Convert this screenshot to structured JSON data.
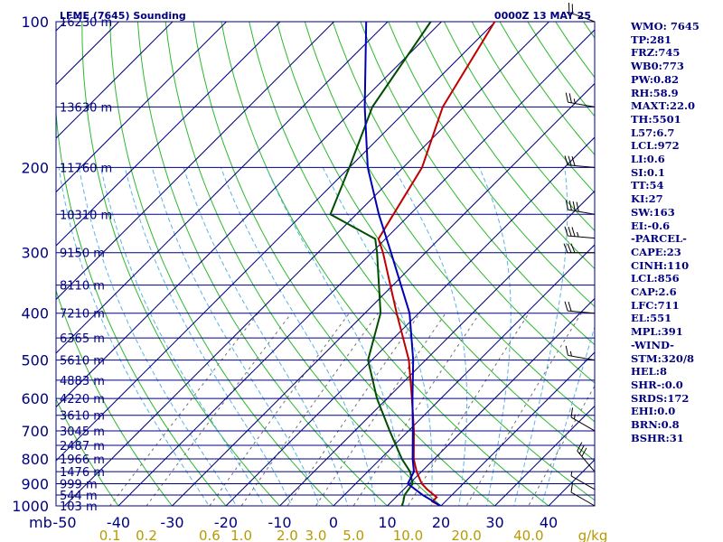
{
  "header": {
    "left": "LFME (7645) Sounding",
    "right": "0000Z 13 MAY 25"
  },
  "indices": [
    "WMO: 7645",
    "TP:281",
    "FRZ:745",
    "WB0:773",
    "PW:0.82",
    "RH:58.9",
    "MAXT:22.0",
    "TH:5501",
    "L57:6.7",
    "LCL:972",
    "LI:0.6",
    "SI:0.1",
    "TT:54",
    "KI:27",
    "SW:163",
    "EI:-0.6",
    "-PARCEL-",
    "CAPE:23",
    "CINH:110",
    "LCL:856",
    "CAP:2.6",
    "LFC:711",
    "EL:551",
    "MPL:391",
    "-WIND-",
    "STM:320/8",
    "HEL:8",
    "SHR-:0.0",
    "SRDS:172",
    "EHI:0.0",
    "BRN:0.8",
    "BSHR:31"
  ],
  "colors": {
    "background": "#ffffff",
    "isobar": "#000080",
    "isotherm": "#000080",
    "dry_adiabat": "#2db82d",
    "moist_adiabat": "#5ab4e6",
    "mixing_ratio": "#707070",
    "temperature": "#c00000",
    "dewpoint": "#004d00",
    "parcel": "#0000b4",
    "label": "#000080",
    "mixing_label": "#b89a00",
    "wind": "#000000"
  },
  "chart_data": {
    "type": "line",
    "title": "LFME (7645) Sounding",
    "subtitle": "0000Z 13 MAY 25",
    "xunit_label": "mb",
    "yscale": "log-pressure",
    "ylim": [
      1000,
      100
    ],
    "xlim": [
      -50,
      50
    ],
    "pressure_ticks": [
      100,
      200,
      300,
      400,
      500,
      600,
      700,
      800,
      900,
      1000
    ],
    "temperature_ticks": [
      -50,
      -40,
      -30,
      -20,
      -10,
      0,
      10,
      20,
      30,
      40
    ],
    "mixing_ratio_ticks": [
      "0.1",
      "0.2",
      "0.6",
      "1.0",
      "2.0",
      "3.0",
      "5.0",
      "10.0",
      "20.0",
      "40.0"
    ],
    "mixing_ratio_unit": "g/kg",
    "height_labels": [
      {
        "p": 100,
        "label": "16230 m"
      },
      {
        "p": 150,
        "label": "13630 m"
      },
      {
        "p": 200,
        "label": "11760 m"
      },
      {
        "p": 250,
        "label": "10310 m"
      },
      {
        "p": 300,
        "label": "9150 m"
      },
      {
        "p": 350,
        "label": "8110 m"
      },
      {
        "p": 400,
        "label": "7210 m"
      },
      {
        "p": 450,
        "label": "6365 m"
      },
      {
        "p": 500,
        "label": "5610 m"
      },
      {
        "p": 550,
        "label": "4883 m"
      },
      {
        "p": 600,
        "label": "4220 m"
      },
      {
        "p": 650,
        "label": "3610 m"
      },
      {
        "p": 700,
        "label": "3045 m"
      },
      {
        "p": 750,
        "label": "2487 m"
      },
      {
        "p": 800,
        "label": "1966 m"
      },
      {
        "p": 850,
        "label": "1476 m"
      },
      {
        "p": 900,
        "label": "999 m"
      },
      {
        "p": 950,
        "label": "544 m"
      },
      {
        "p": 1000,
        "label": "103 m"
      }
    ],
    "series": [
      {
        "kind": "temperature",
        "points": [
          [
            1000,
            19.9
          ],
          [
            980,
            17.6
          ],
          [
            960,
            17.6
          ],
          [
            925,
            14.4
          ],
          [
            900,
            12.3
          ],
          [
            850,
            9.1
          ],
          [
            800,
            6.2
          ],
          [
            700,
            1.0
          ],
          [
            600,
            -5.4
          ],
          [
            500,
            -13.1
          ],
          [
            400,
            -24.1
          ],
          [
            300,
            -37.9
          ],
          [
            281,
            -41.3
          ],
          [
            250,
            -43.1
          ],
          [
            200,
            -46.5
          ],
          [
            150,
            -53.9
          ],
          [
            100,
            -60.1
          ]
        ]
      },
      {
        "kind": "dewpoint",
        "points": [
          [
            1000,
            12.7
          ],
          [
            980,
            12.2
          ],
          [
            950,
            11.2
          ],
          [
            900,
            10.6
          ],
          [
            850,
            7.9
          ],
          [
            800,
            4.0
          ],
          [
            700,
            -3.5
          ],
          [
            600,
            -11.9
          ],
          [
            500,
            -20.7
          ],
          [
            400,
            -27.1
          ],
          [
            300,
            -39.0
          ],
          [
            281,
            -41.9
          ],
          [
            250,
            -54.8
          ],
          [
            200,
            -60.0
          ],
          [
            150,
            -67.0
          ],
          [
            100,
            -72.0
          ]
        ]
      },
      {
        "kind": "parcel",
        "points": [
          [
            1000,
            19.9
          ],
          [
            972,
            17.0
          ],
          [
            950,
            14.6
          ],
          [
            900,
            9.7
          ],
          [
            850,
            8.6
          ],
          [
            800,
            6.0
          ],
          [
            700,
            0.8
          ],
          [
            600,
            -5.3
          ],
          [
            500,
            -12.3
          ],
          [
            400,
            -21.7
          ],
          [
            300,
            -36.4
          ],
          [
            250,
            -45.8
          ],
          [
            200,
            -56.6
          ],
          [
            150,
            -68.4
          ],
          [
            100,
            -84.0
          ]
        ]
      }
    ],
    "winds": [
      {
        "p": 1000,
        "dir": 300,
        "spd": 10
      },
      {
        "p": 925,
        "dir": 300,
        "spd": 5
      },
      {
        "p": 850,
        "dir": 320,
        "spd": 30
      },
      {
        "p": 700,
        "dir": 300,
        "spd": 15
      },
      {
        "p": 500,
        "dir": 280,
        "spd": 15
      },
      {
        "p": 400,
        "dir": 275,
        "spd": 20
      },
      {
        "p": 300,
        "dir": 270,
        "spd": 30
      },
      {
        "p": 280,
        "dir": 275,
        "spd": 35
      },
      {
        "p": 250,
        "dir": 280,
        "spd": 40
      },
      {
        "p": 200,
        "dir": 275,
        "spd": 30
      },
      {
        "p": 150,
        "dir": 280,
        "spd": 25
      },
      {
        "p": 100,
        "dir": 290,
        "spd": 20
      }
    ]
  }
}
